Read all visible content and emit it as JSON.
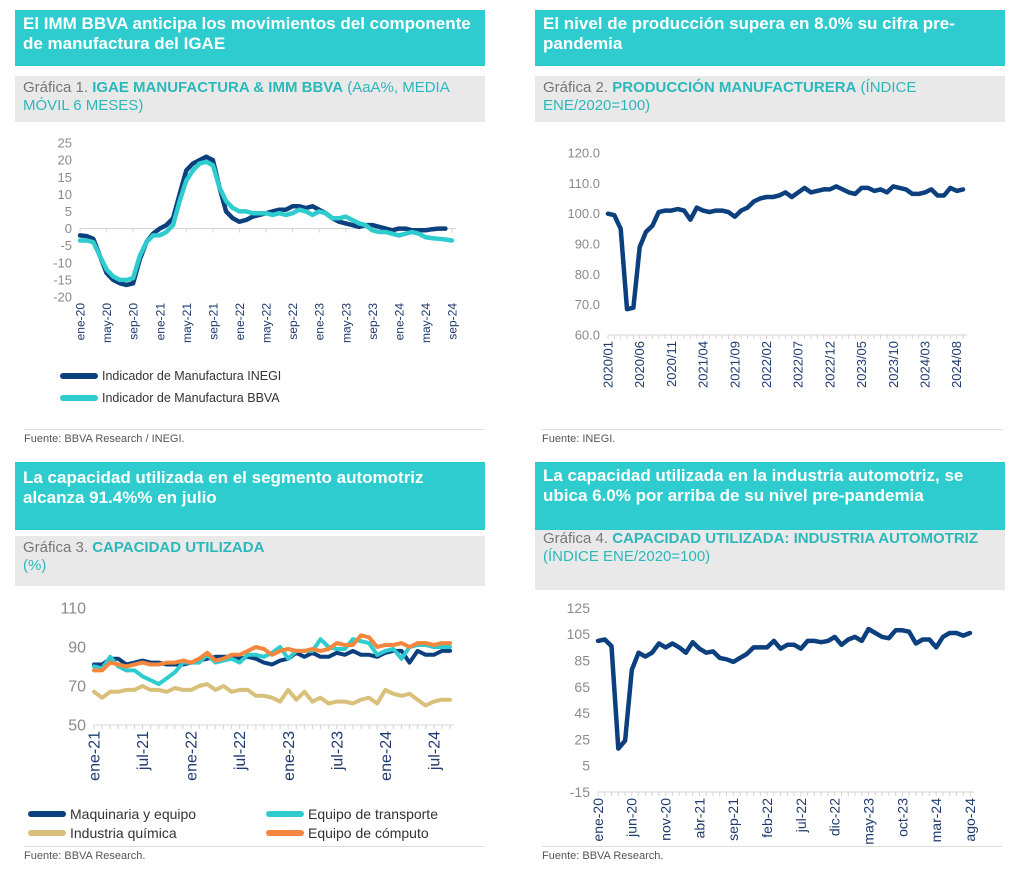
{
  "colors": {
    "navy": "#0b3f7e",
    "teal": "#2ecccf",
    "sand": "#d8c07a",
    "orange": "#f4863d"
  },
  "panels": [
    {
      "title": "El IMM BBVA anticipa los movimientos del componente de manufactura del IGAE",
      "prefix": "Gráfica 1. ",
      "name": "IGAE MANUFACTURA & IMM BBVA",
      "tail": " (AaA%, MEDIA MÓVIL 6 MESES)",
      "source": "Fuente: BBVA Research / INEGI."
    },
    {
      "title": "El nivel de producción supera en 8.0% su cifra pre-pandemia",
      "prefix": "Gráfica 2. ",
      "name": "PRODUCCIÓN MANUFACTURERA",
      "tail": " (ÍNDICE ENE/2020=100)",
      "source": "Fuente: INEGI."
    },
    {
      "title": "La capacidad utilizada en el segmento automotriz alcanza 91.4%% en julio",
      "prefix": "Gráfica 3. ",
      "name": "CAPACIDAD UTILIZADA",
      "tail": " (%)",
      "source": "Fuente: BBVA Research."
    },
    {
      "title": "La capacidad utilizada en la industria automotriz, se ubica 6.0% por arriba de su nivel pre-pandemia",
      "prefix": "Gráfica 4. ",
      "name": "CAPACIDAD UTILIZADA: INDUSTRIA AUTOMOTRIZ",
      "tail": " (ÍNDICE ENE/2020=100)",
      "source": "Fuente: BBVA Research."
    }
  ],
  "chart_data": [
    {
      "type": "line",
      "ylim": [
        -20,
        25
      ],
      "ystep": 5,
      "yticks_decimals": 0,
      "xtick_every": 4,
      "xtick_labels": [
        "ene-20",
        "may-20",
        "sep-20",
        "ene-21",
        "may-21",
        "sep-21",
        "ene-22",
        "may-22",
        "sep-22",
        "ene-23",
        "may-23",
        "sep-23",
        "ene-24",
        "may-24",
        "sep-24"
      ],
      "legend": "bottom-left",
      "series": [
        {
          "name": "Indicador de Manufactura INEGI",
          "color": "#0b3f7e",
          "values": [
            -2,
            -2.2,
            -3,
            -8,
            -13,
            -15,
            -16,
            -16.5,
            -16,
            -9,
            -4,
            -1.5,
            0,
            1,
            3,
            10,
            17,
            19,
            20,
            21,
            20,
            12,
            5,
            3,
            2,
            2.5,
            3.5,
            4,
            4.5,
            5,
            5.5,
            5.5,
            6.5,
            6.5,
            6,
            6.5,
            5.5,
            4.5,
            3,
            2,
            1.5,
            1,
            0.5,
            1,
            1,
            0.5,
            0,
            -0.5,
            0,
            0,
            -0.5,
            -0.5,
            -0.5,
            -0.2,
            0,
            0
          ]
        },
        {
          "name": "Indicador de Manufactura BBVA",
          "color": "#2ecccf",
          "values": [
            -3.5,
            -3.5,
            -4,
            -8,
            -12,
            -14,
            -15,
            -15,
            -14.5,
            -8,
            -4,
            -2,
            -2,
            -1,
            1,
            8,
            14,
            17,
            19,
            19.5,
            18.5,
            12,
            8,
            6,
            5,
            5,
            4.5,
            4.5,
            4.5,
            4,
            4.5,
            4,
            4.5,
            5.5,
            5,
            4,
            5,
            4.5,
            3,
            3,
            3.5,
            2.5,
            1.5,
            1,
            -0.5,
            -1,
            -1,
            -1.5,
            -2,
            -1.5,
            -1,
            -1.5,
            -2.5,
            -2.8,
            -3,
            -3.2,
            -3.5
          ]
        }
      ]
    },
    {
      "type": "line",
      "ylim": [
        60,
        120
      ],
      "ystep": 10,
      "yticks_decimals": 1,
      "xtick_every": 5,
      "xtick_labels": [
        "2020/01",
        "2020/06",
        "2020/11",
        "2021/04",
        "2021/09",
        "2022/02",
        "2022/07",
        "2022/12",
        "2023/05",
        "2023/10",
        "2024/03",
        "2024/08"
      ],
      "series": [
        {
          "color": "#0b3f7e",
          "values": [
            100,
            99.5,
            95,
            68.5,
            69,
            89,
            94,
            96,
            100.5,
            101,
            101,
            101.5,
            101,
            98,
            102,
            101,
            100.5,
            101,
            101,
            100.5,
            99,
            101,
            102,
            104,
            105,
            105.5,
            105.5,
            106,
            107,
            105.5,
            107,
            108.5,
            107,
            107.5,
            108,
            108,
            109,
            108,
            107,
            106.5,
            108.5,
            108.5,
            107.5,
            108,
            107,
            109,
            108.5,
            108,
            106.5,
            106.5,
            107,
            108,
            106,
            106,
            108.5,
            107.5,
            108
          ]
        }
      ]
    },
    {
      "type": "line",
      "ylim": [
        50,
        110
      ],
      "ystep": 20,
      "yticks_decimals": 0,
      "xtick_every": 6,
      "xtick_labels": [
        "ene-21",
        "jul-21",
        "ene-22",
        "jul-22",
        "ene-23",
        "jul-23",
        "ene-24",
        "jul-24"
      ],
      "legend": "bottom",
      "series": [
        {
          "name": "Maquinaria y equipo",
          "color": "#0b3f7e",
          "values": [
            81,
            81,
            84,
            84,
            81,
            82,
            83,
            82,
            82,
            81,
            81,
            81,
            82,
            83,
            84,
            85,
            85,
            85,
            84,
            85,
            84,
            82,
            81,
            83,
            84,
            87,
            85,
            87,
            85,
            85,
            87,
            86,
            88,
            86,
            86,
            85,
            87,
            88,
            88,
            82,
            88,
            86,
            86,
            88,
            88
          ]
        },
        {
          "name": "Equipo de transporte",
          "color": "#2ecccf",
          "values": [
            80,
            79,
            85,
            80,
            78,
            78,
            75,
            73,
            71,
            74,
            77,
            82,
            82,
            82,
            86,
            82,
            83,
            84,
            82,
            86,
            86,
            85,
            87,
            90,
            84,
            88,
            88,
            88,
            94,
            90,
            89,
            89,
            94,
            93,
            92,
            86,
            88,
            89,
            84,
            90,
            91,
            91,
            90,
            90,
            90
          ]
        },
        {
          "name": "Industria química",
          "color": "#d8c07a",
          "values": [
            67,
            64,
            67,
            67,
            68,
            68,
            70,
            68,
            68,
            67,
            69,
            68,
            68,
            70,
            71,
            68,
            70,
            67,
            68,
            68,
            65,
            65,
            64,
            62,
            68,
            63,
            67,
            62,
            64,
            61,
            62,
            62,
            61,
            63,
            64,
            61,
            68,
            66,
            65,
            66,
            63,
            60,
            62,
            63,
            63
          ]
        },
        {
          "name": "Equipo de cómputo",
          "color": "#f4863d",
          "values": [
            78,
            78,
            82,
            81,
            80,
            81,
            82,
            81,
            81,
            82,
            82,
            83,
            82,
            84,
            87,
            83,
            84,
            86,
            86,
            88,
            90,
            89,
            86,
            88,
            89,
            88,
            88,
            89,
            88,
            89,
            92,
            91,
            91,
            96,
            95,
            90,
            91,
            91,
            92,
            90,
            92,
            92,
            91,
            92,
            92
          ]
        }
      ]
    },
    {
      "type": "line",
      "ylim": [
        -15,
        125
      ],
      "ystep": 20,
      "yticks_decimals": 0,
      "xtick_every": 5,
      "xtick_labels": [
        "ene-20",
        "jun-20",
        "nov-20",
        "abr-21",
        "sep-21",
        "feb-22",
        "jul-22",
        "dic-22",
        "may-23",
        "oct-23",
        "mar-24",
        "ago-24"
      ],
      "series": [
        {
          "color": "#0b3f7e",
          "values": [
            100,
            101,
            96,
            18,
            24,
            78,
            91,
            88,
            91,
            98,
            95,
            98,
            95,
            91,
            99,
            94,
            91,
            92,
            87,
            86,
            84,
            87,
            90,
            95,
            95,
            95,
            100,
            94,
            97,
            97,
            94,
            100,
            100,
            99,
            100,
            103,
            97,
            101,
            103,
            100,
            109,
            106,
            103,
            102,
            108,
            108,
            107,
            98,
            101,
            101,
            95,
            103,
            106,
            106,
            104,
            106
          ]
        }
      ]
    }
  ]
}
